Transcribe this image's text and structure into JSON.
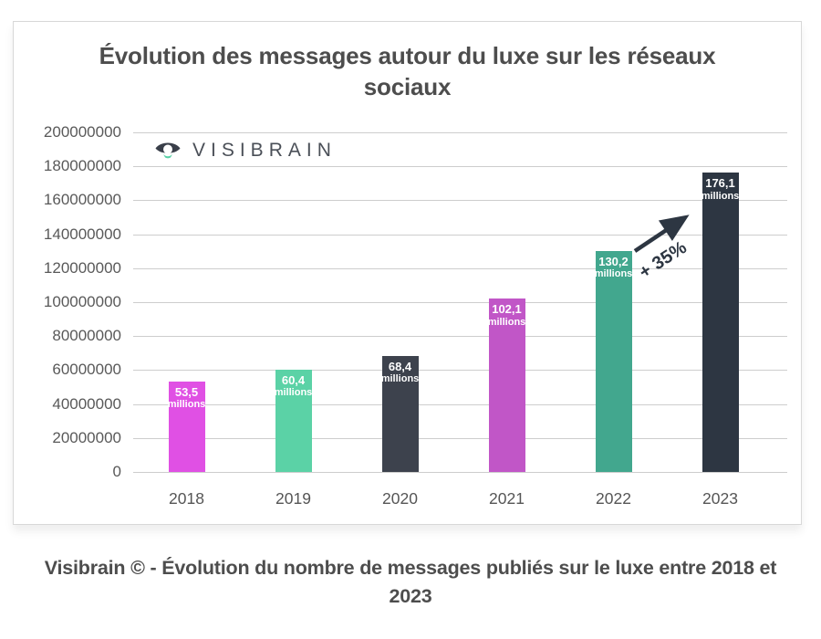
{
  "page": {
    "title": "Évolution des messages autour du luxe sur les réseaux sociaux",
    "caption": "Visibrain © - Évolution du nombre de messages publiés sur le luxe entre 2018 et 2023"
  },
  "logo": {
    "brand": "VISIBRAIN",
    "accent_color": "#57d0a5",
    "eye_color": "#3a3f4a"
  },
  "annotation": {
    "growth_label": "+ 35%",
    "from_year": "2022",
    "to_year": "2023",
    "color": "#2d3642"
  },
  "chart_data": {
    "type": "bar",
    "title": "Évolution des messages autour du luxe sur les réseaux sociaux",
    "categories": [
      "2018",
      "2019",
      "2020",
      "2021",
      "2022",
      "2023"
    ],
    "values": [
      53500000,
      60400000,
      68400000,
      102100000,
      130200000,
      176100000
    ],
    "bar_labels": [
      [
        "53,5",
        "millions"
      ],
      [
        "60,4",
        "millions"
      ],
      [
        "68,4",
        "millions"
      ],
      [
        "102,1",
        "millions"
      ],
      [
        "130,2",
        "millions"
      ],
      [
        "176,1",
        "millions"
      ]
    ],
    "bar_colors": [
      "#e050e4",
      "#5bd2a6",
      "#3d424d",
      "#c156c7",
      "#42a78e",
      "#2d3642"
    ],
    "y_ticks": [
      200000000,
      180000000,
      160000000,
      140000000,
      120000000,
      100000000,
      80000000,
      60000000,
      40000000,
      20000000,
      0
    ],
    "ylim": [
      0,
      200000000
    ],
    "grid": true,
    "legend": "none",
    "xlabel": "",
    "ylabel": "",
    "annotation": "+ 35% between 2022 and 2023"
  }
}
